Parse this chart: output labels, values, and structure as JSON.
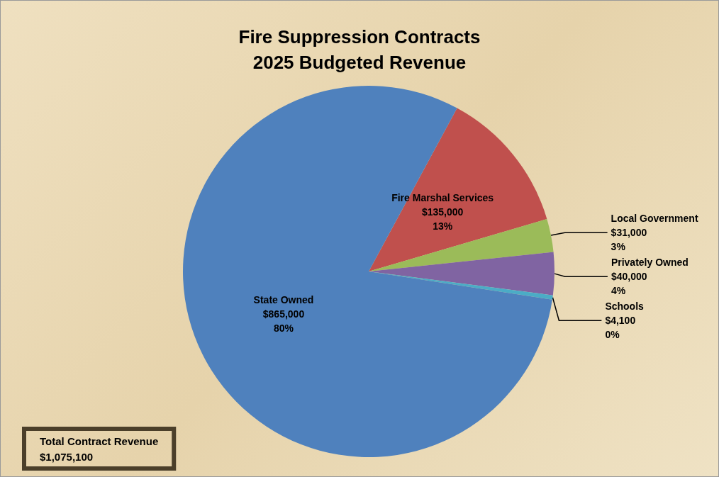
{
  "chart_data": {
    "type": "pie",
    "title": "Fire Suppression Contracts\n2025 Budgeted Revenue",
    "categories": [
      "Fire Marshal Services",
      "Local Government",
      "Privately Owned",
      "Schools",
      "State Owned"
    ],
    "values": [
      135000,
      31000,
      40000,
      4100,
      865000
    ],
    "colors": [
      "#c0504d",
      "#9bbb59",
      "#8064a2",
      "#4bacc6",
      "#4f81bd"
    ],
    "value_labels": [
      "$135,000\n13%",
      "$31,000\n3%",
      "$40,000\n4%",
      "$4,100\n0%",
      "$865,000\n80%"
    ],
    "annotations": [
      "Total Contract Revenue\n$1,075,100"
    ],
    "legend": false
  }
}
